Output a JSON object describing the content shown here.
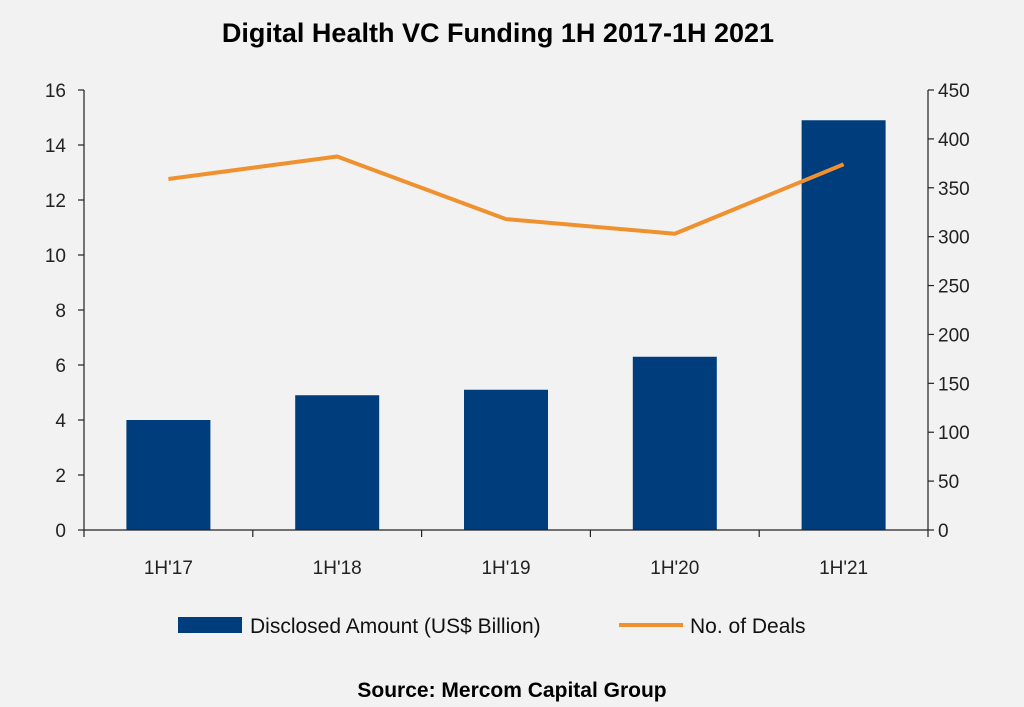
{
  "chart_data": {
    "type": "bar",
    "title": "Digital Health VC Funding 1H 2017-1H 2021",
    "categories": [
      "1H'17",
      "1H'18",
      "1H'19",
      "1H'20",
      "1H'21"
    ],
    "series": [
      {
        "name": "Disclosed Amount (US$ Billion)",
        "type": "bar",
        "axis": "left",
        "color": "#003d7c",
        "values": [
          4.0,
          4.9,
          5.1,
          6.3,
          14.9
        ]
      },
      {
        "name": "No. of Deals",
        "type": "line",
        "axis": "right",
        "color": "#f0912f",
        "values": [
          359,
          382,
          318,
          303,
          374
        ]
      }
    ],
    "y_left": {
      "min": 0,
      "max": 16,
      "step": 2
    },
    "y_right": {
      "min": 0,
      "max": 450,
      "step": 50
    },
    "grid": false,
    "legend_position": "bottom",
    "source": "Source: Mercom Capital Group"
  }
}
